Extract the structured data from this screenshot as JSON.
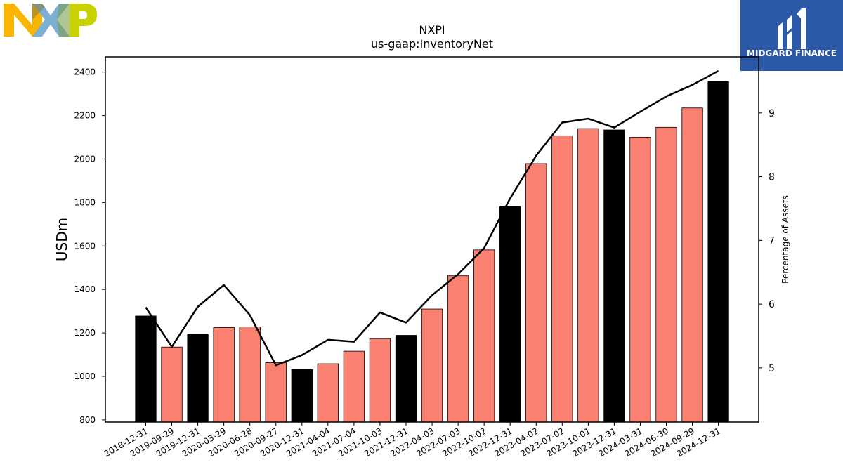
{
  "branding": {
    "logo_text": "NXP",
    "badge_text": "MIDGARD FINANCE",
    "colors": {
      "n": "#f9b500",
      "x": "#7bafd4",
      "p": "#c9d200",
      "badge_bg": "#2b59a8"
    }
  },
  "chart_data": {
    "type": "bar",
    "title": "NXPI",
    "subtitle": "us-gaap:InventoryNet",
    "ylabel": "USDm",
    "y2label": "Percentage of Assets",
    "ylim": [
      790,
      2470
    ],
    "y2lim": [
      4.15,
      9.88
    ],
    "yticks": [
      800,
      1000,
      1200,
      1400,
      1600,
      1800,
      2000,
      2200,
      2400
    ],
    "y2ticks": [
      5,
      6,
      7,
      8,
      9
    ],
    "categories": [
      "2018-12-31",
      "2019-09-29",
      "2019-12-31",
      "2020-03-29",
      "2020-06-28",
      "2020-09-27",
      "2020-12-31",
      "2021-04-04",
      "2021-07-04",
      "2021-10-03",
      "2021-12-31",
      "2022-04-03",
      "2022-07-03",
      "2022-10-02",
      "2022-12-31",
      "2023-04-02",
      "2023-07-02",
      "2023-10-01",
      "2023-12-31",
      "2024-03-31",
      "2024-06-30",
      "2024-09-29",
      "2024-12-31"
    ],
    "series": [
      {
        "type": "bar",
        "values": [
          1278,
          1135,
          1193,
          1225,
          1228,
          1063,
          1031,
          1058,
          1116,
          1174,
          1189,
          1310,
          1463,
          1582,
          1781,
          1979,
          2107,
          2140,
          2134,
          2100,
          2146,
          2235,
          2356
        ],
        "annual_flags": [
          true,
          false,
          true,
          false,
          false,
          false,
          true,
          false,
          false,
          false,
          true,
          false,
          false,
          false,
          true,
          false,
          false,
          false,
          true,
          false,
          false,
          false,
          true
        ],
        "colors": {
          "annual": "#000000",
          "quarterly": "#fa8072"
        }
      },
      {
        "type": "line",
        "axis": "right",
        "values": [
          5.95,
          5.33,
          5.96,
          6.3,
          5.83,
          5.04,
          5.2,
          5.44,
          5.41,
          5.87,
          5.71,
          6.14,
          6.47,
          6.88,
          7.66,
          8.33,
          8.85,
          8.91,
          8.77,
          9.02,
          9.26,
          9.44,
          9.66
        ],
        "color": "#000000"
      }
    ],
    "grid": false,
    "legend": "none"
  }
}
